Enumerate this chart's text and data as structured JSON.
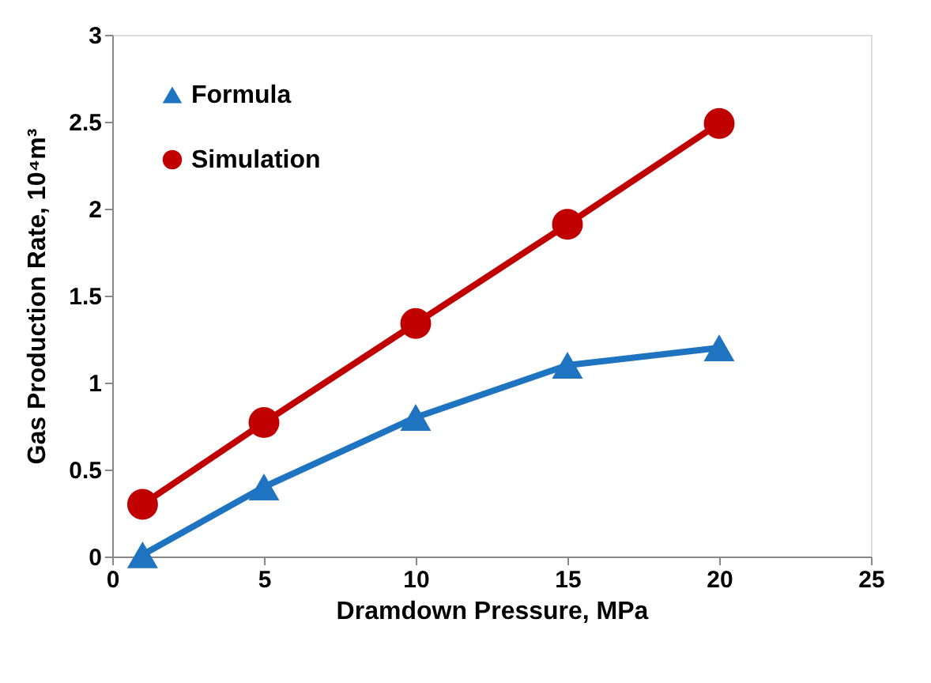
{
  "chart_data": {
    "type": "line",
    "xlabel": "Dramdown Pressure, MPa",
    "ylabel": "Gas Production Rate, 10⁴m³",
    "x": [
      1,
      5,
      10,
      15,
      20
    ],
    "series": [
      {
        "name": "Formula",
        "color": "#1f74c1",
        "marker": "triangle",
        "values": [
          0.01,
          0.4,
          0.8,
          1.1,
          1.2
        ]
      },
      {
        "name": "Simulation",
        "color": "#c00000",
        "marker": "circle",
        "values": [
          0.3,
          0.77,
          1.34,
          1.91,
          2.49
        ]
      }
    ],
    "xlim": [
      0,
      25
    ],
    "xticks": [
      0,
      5,
      10,
      15,
      20,
      25
    ],
    "ylim": [
      0,
      3
    ],
    "yticks": [
      0,
      0.5,
      1,
      1.5,
      2,
      2.5,
      3
    ],
    "grid": false,
    "legend": "top left",
    "line_style": "solid"
  }
}
